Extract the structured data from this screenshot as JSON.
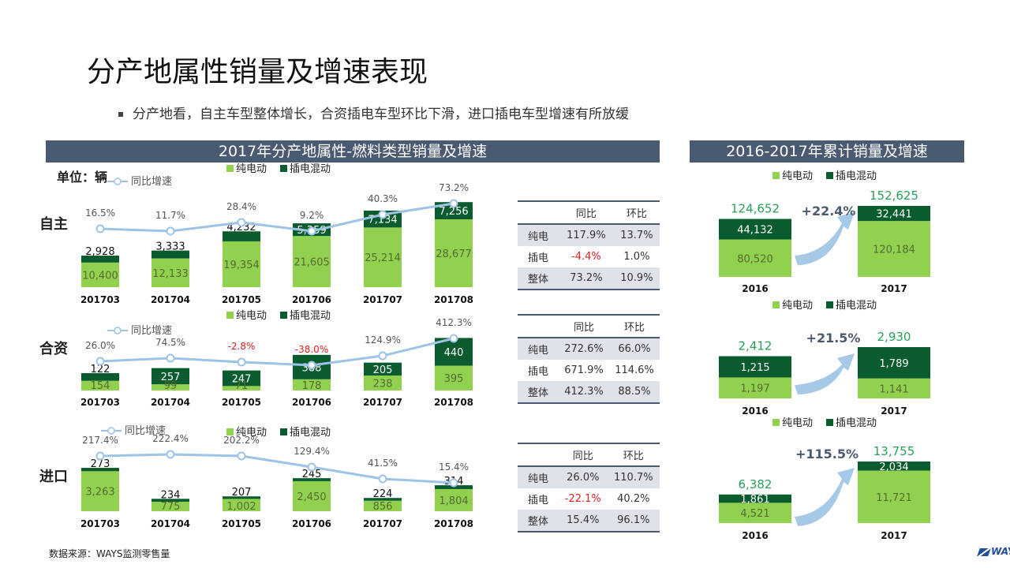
{
  "page": {
    "title": "分产地属性销量及增速表现",
    "subtitle": "分产地看，自主车型整体增长，合资插电车型环比下滑，进口插电车型增速有所放缓",
    "left_header": "2017年分产地属性-燃料类型销量及增速",
    "right_header": "2016-2017年累计销量及增速",
    "unit_label": "单位：辆",
    "footer_source": "数据来源：WAYS监测零售量",
    "brand": "WAYS",
    "colors": {
      "header_bg": "#4a5a70",
      "bev": "#92d050",
      "phev": "#0a5c2e",
      "growth_line": "#9dc3e6",
      "negative": "#e02020",
      "cum_value": "#27a05a"
    }
  },
  "legend": {
    "bev": "纯电动",
    "phev": "插电混动",
    "growth": "同比增速"
  },
  "chart_data": [
    {
      "type": "bar",
      "group": "自主",
      "stacked": true,
      "categories": [
        "201703",
        "201704",
        "201705",
        "201706",
        "201707",
        "201708"
      ],
      "series": [
        {
          "name": "纯电动",
          "values": [
            10400,
            12133,
            19354,
            21605,
            25214,
            28677
          ],
          "labels": [
            "10,400",
            "12,133",
            "19,354",
            "21,605",
            "25,214",
            "28,677"
          ]
        },
        {
          "name": "插电混动",
          "values": [
            2928,
            3333,
            4232,
            5359,
            7134,
            7256
          ],
          "labels": [
            "2,928",
            "3,333",
            "4,232",
            "5,359",
            "7,134",
            "7,256"
          ]
        }
      ],
      "growth": {
        "name": "同比增速",
        "values": [
          16.5,
          11.7,
          28.4,
          9.2,
          40.3,
          73.2
        ],
        "labels": [
          "16.5%",
          "11.7%",
          "28.4%",
          "9.2%",
          "40.3%",
          "73.2%"
        ]
      }
    },
    {
      "type": "bar",
      "group": "合资",
      "stacked": true,
      "categories": [
        "201703",
        "201704",
        "201705",
        "201706",
        "201707",
        "201708"
      ],
      "series": [
        {
          "name": "纯电动",
          "values": [
            154,
            99,
            71,
            178,
            238,
            395
          ],
          "labels": [
            "154",
            "99",
            "71",
            "178",
            "238",
            "395"
          ]
        },
        {
          "name": "插电混动",
          "values": [
            122,
            257,
            247,
            388,
            205,
            440
          ],
          "labels": [
            "122",
            "257",
            "247",
            "388",
            "205",
            "440"
          ]
        }
      ],
      "growth": {
        "name": "同比增速",
        "values": [
          26.0,
          74.5,
          -2.8,
          -38.0,
          124.9,
          412.3
        ],
        "labels": [
          "26.0%",
          "74.5%",
          "-2.8%",
          "-38.0%",
          "124.9%",
          "412.3%"
        ]
      }
    },
    {
      "type": "bar",
      "group": "进口",
      "stacked": true,
      "categories": [
        "201703",
        "201704",
        "201705",
        "201706",
        "201707",
        "201708"
      ],
      "series": [
        {
          "name": "纯电动",
          "values": [
            3263,
            775,
            1002,
            2450,
            856,
            1804
          ],
          "labels": [
            "3,263",
            "775",
            "1,002",
            "2,450",
            "856",
            "1,804"
          ]
        },
        {
          "name": "插电混动",
          "values": [
            273,
            234,
            207,
            245,
            224,
            314
          ],
          "labels": [
            "273",
            "234",
            "207",
            "245",
            "224",
            "314"
          ]
        }
      ],
      "growth": {
        "name": "同比增速",
        "values": [
          217.4,
          222.4,
          202.2,
          129.4,
          41.5,
          15.4
        ],
        "labels": [
          "217.4%",
          "222.4%",
          "202.2%",
          "129.4%",
          "41.5%",
          "15.4%"
        ]
      }
    },
    {
      "type": "bar",
      "group": "自主累计",
      "stacked": true,
      "categories": [
        "2016",
        "2017"
      ],
      "series": [
        {
          "name": "纯电动",
          "values": [
            80520,
            120184
          ],
          "labels": [
            "80,520",
            "120,184"
          ]
        },
        {
          "name": "插电混动",
          "values": [
            44132,
            32441
          ],
          "labels": [
            "44,132",
            "32,441"
          ]
        }
      ],
      "totals": [
        "124,652",
        "152,625"
      ],
      "growth_label": "+22.4%"
    },
    {
      "type": "bar",
      "group": "合资累计",
      "stacked": true,
      "categories": [
        "2016",
        "2017"
      ],
      "series": [
        {
          "name": "纯电动",
          "values": [
            1197,
            1141
          ],
          "labels": [
            "1,197",
            "1,141"
          ]
        },
        {
          "name": "插电混动",
          "values": [
            1215,
            1789
          ],
          "labels": [
            "1,215",
            "1,789"
          ]
        }
      ],
      "totals": [
        "2,412",
        "2,930"
      ],
      "growth_label": "+21.5%"
    },
    {
      "type": "bar",
      "group": "进口累计",
      "stacked": true,
      "categories": [
        "2016",
        "2017"
      ],
      "series": [
        {
          "name": "纯电动",
          "values": [
            4521,
            11721
          ],
          "labels": [
            "4,521",
            "11,721"
          ]
        },
        {
          "name": "插电混动",
          "values": [
            1861,
            2034
          ],
          "labels": [
            "1,861",
            "2,034"
          ]
        }
      ],
      "totals": [
        "6,382",
        "13,755"
      ],
      "growth_label": "+115.5%"
    }
  ],
  "tables": [
    {
      "headers": [
        "",
        "同比",
        "环比"
      ],
      "rows": [
        {
          "label": "纯电",
          "yoy": "117.9%",
          "mom": "13.7%"
        },
        {
          "label": "插电",
          "yoy": "-4.4%",
          "mom": "1.0%"
        },
        {
          "label": "整体",
          "yoy": "73.2%",
          "mom": "10.9%"
        }
      ]
    },
    {
      "headers": [
        "",
        "同比",
        "环比"
      ],
      "rows": [
        {
          "label": "纯电",
          "yoy": "272.6%",
          "mom": "66.0%"
        },
        {
          "label": "插电",
          "yoy": "671.9%",
          "mom": "114.6%"
        },
        {
          "label": "整体",
          "yoy": "412.3%",
          "mom": "88.5%"
        }
      ]
    },
    {
      "headers": [
        "",
        "同比",
        "环比"
      ],
      "rows": [
        {
          "label": "纯电",
          "yoy": "26.0%",
          "mom": "110.7%"
        },
        {
          "label": "插电",
          "yoy": "-22.1%",
          "mom": "40.2%"
        },
        {
          "label": "整体",
          "yoy": "15.4%",
          "mom": "96.1%"
        }
      ]
    }
  ]
}
